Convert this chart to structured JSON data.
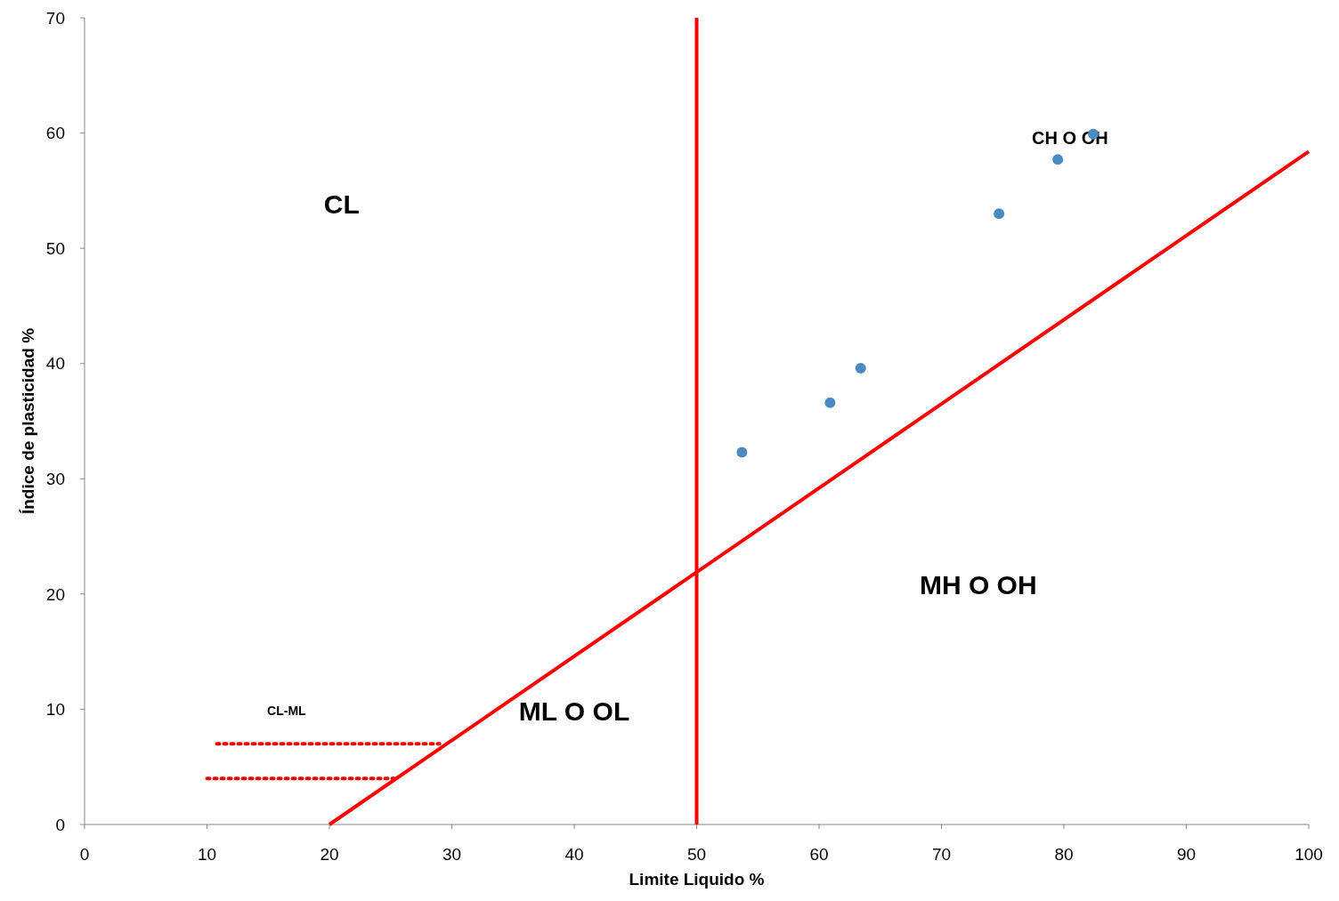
{
  "chart_data": {
    "type": "scatter",
    "xlabel": "Limite Liquido %",
    "ylabel": "Índice de plasticidad %",
    "xlim": [
      0,
      100
    ],
    "ylim": [
      0,
      70
    ],
    "xticks": [
      0,
      10,
      20,
      30,
      40,
      50,
      60,
      70,
      80,
      90,
      100
    ],
    "yticks": [
      0,
      10,
      20,
      30,
      40,
      50,
      60,
      70
    ],
    "grid": false,
    "series": [
      {
        "color": "#4a8bc4",
        "marker": "circle",
        "x": [
          53.7,
          60.9,
          63.4,
          74.7,
          79.5,
          82.4
        ],
        "values": [
          32.3,
          36.6,
          39.6,
          53.0,
          57.7,
          59.9
        ]
      },
      {
        "type": "line",
        "color": "#ff0000",
        "line_style": "solid",
        "x": [
          20,
          100
        ],
        "values": [
          0,
          58.4
        ]
      },
      {
        "type": "line",
        "color": "#ff0000",
        "line_style": "dotted",
        "x": [
          10.8,
          29
        ],
        "values": [
          7,
          7
        ]
      },
      {
        "type": "line",
        "color": "#ff0000",
        "line_style": "dotted",
        "x": [
          10,
          25.3
        ],
        "values": [
          4,
          4
        ]
      }
    ],
    "ref_lines": [
      {
        "axis": "x",
        "value": 50,
        "color": "#ff0000",
        "line_style": "solid"
      }
    ],
    "annotations": [
      "CL",
      "CH O OH",
      "MH O OH",
      "ML O OL",
      "CL-ML"
    ]
  }
}
